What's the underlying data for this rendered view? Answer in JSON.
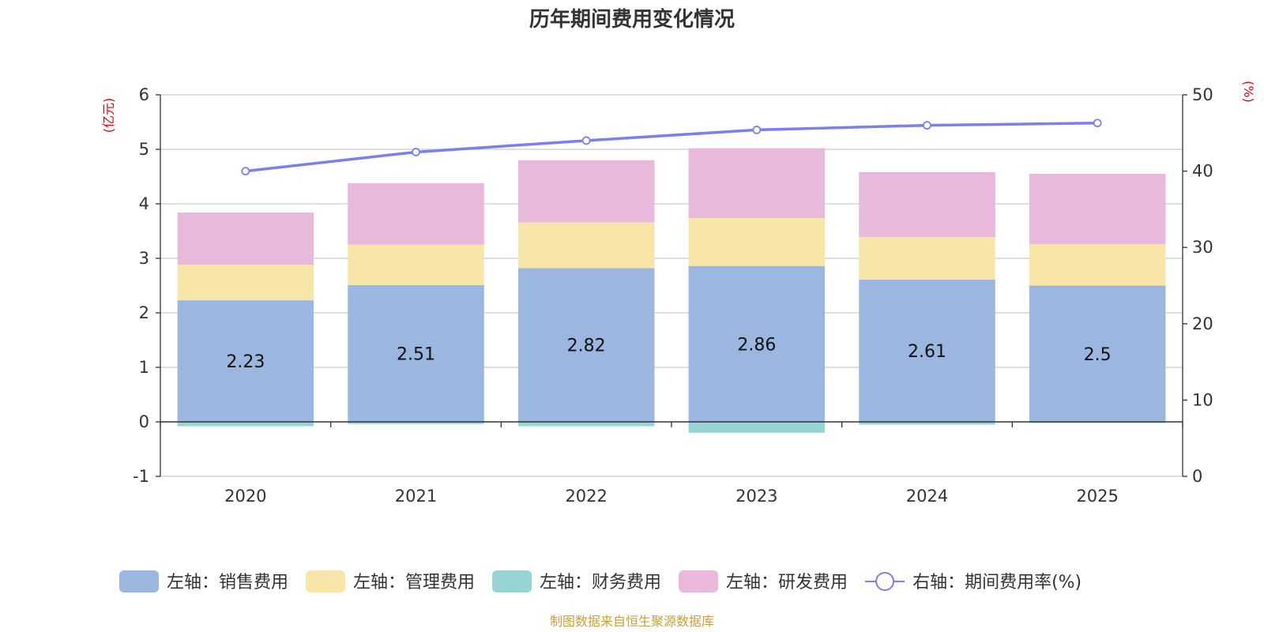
{
  "chart_data": {
    "type": "bar",
    "stacked": true,
    "title": "历年期间费用变化情况",
    "categories": [
      "2020",
      "2021",
      "2022",
      "2023",
      "2024",
      "2025"
    ],
    "left_axis": {
      "unit": "(亿元)",
      "ylim": [
        -1,
        6
      ],
      "ticks": [
        -1,
        0,
        1,
        2,
        3,
        4,
        5,
        6
      ]
    },
    "right_axis": {
      "unit": "(%)",
      "ylim": [
        0,
        50
      ],
      "ticks": [
        0,
        10,
        20,
        30,
        40,
        50
      ]
    },
    "series": [
      {
        "name": "左轴：销售费用",
        "type": "bar",
        "axis": "left",
        "color": "#9bb7e0",
        "values": [
          2.23,
          2.51,
          2.82,
          2.86,
          2.61,
          2.5
        ],
        "labels": [
          "2.23",
          "2.51",
          "2.82",
          "2.86",
          "2.61",
          "2.5"
        ]
      },
      {
        "name": "左轴：管理费用",
        "type": "bar",
        "axis": "left",
        "color": "#f8e6a8",
        "values": [
          0.65,
          0.74,
          0.84,
          0.88,
          0.78,
          0.76
        ]
      },
      {
        "name": "左轴：财务费用",
        "type": "bar",
        "axis": "left",
        "color": "#97d5d5",
        "values": [
          -0.08,
          -0.04,
          -0.08,
          -0.2,
          -0.05,
          -0.02
        ]
      },
      {
        "name": "左轴：研发费用",
        "type": "bar",
        "axis": "left",
        "color": "#e8b9da",
        "values": [
          0.96,
          1.13,
          1.14,
          1.28,
          1.19,
          1.29
        ]
      },
      {
        "name": "右轴：期间费用率(%)",
        "type": "line",
        "axis": "right",
        "color": "#7b7ff0",
        "values": [
          40.0,
          42.5,
          44.0,
          45.4,
          46.0,
          46.3
        ]
      }
    ]
  },
  "source": "制图数据来自恒生聚源数据库"
}
